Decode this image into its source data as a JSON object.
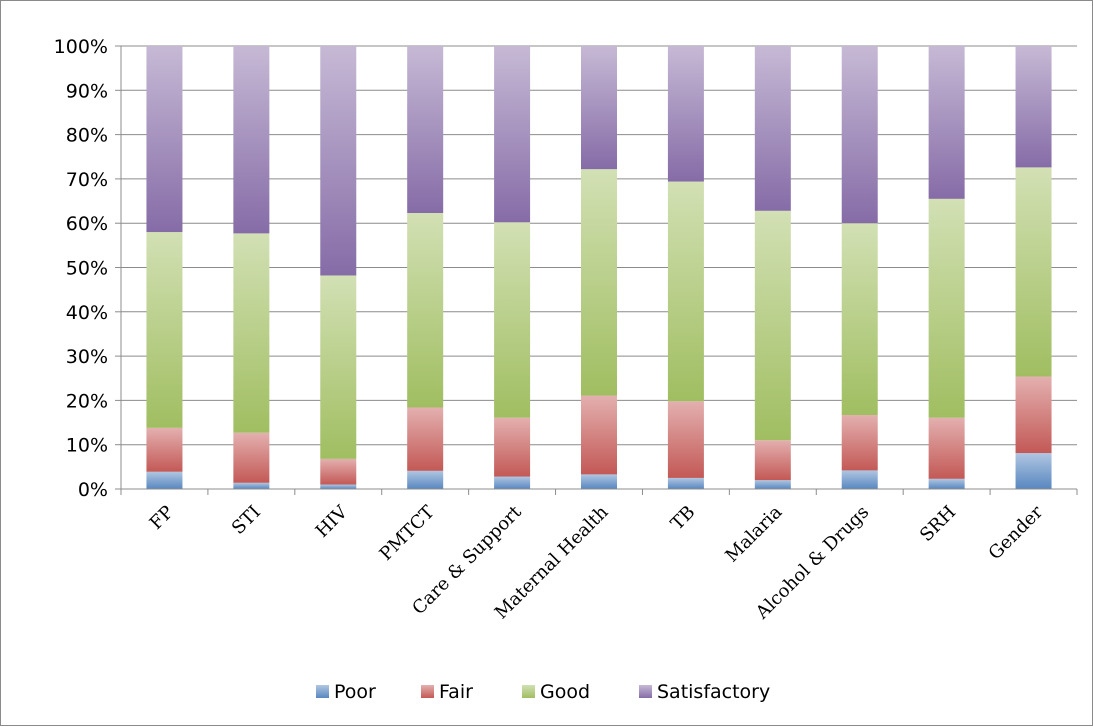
{
  "chart_data": {
    "type": "bar",
    "stacked": true,
    "percent": true,
    "categories": [
      "FP",
      "STI",
      "HIV",
      "PMTCT",
      "Care & Support",
      "Maternal Health",
      "TB",
      "Malaria",
      "Alcohol & Drugs",
      "SRH",
      "Gender"
    ],
    "series": [
      {
        "name": "Poor",
        "color": "#4f81bd",
        "values": [
          3.9,
          1.4,
          1.0,
          4.1,
          2.8,
          3.3,
          2.5,
          2.0,
          4.2,
          2.3,
          8.1
        ]
      },
      {
        "name": "Fair",
        "color": "#c0504d",
        "values": [
          9.9,
          11.3,
          5.8,
          14.3,
          13.3,
          17.8,
          17.3,
          9.0,
          12.5,
          13.8,
          17.3
        ]
      },
      {
        "name": "Good",
        "color": "#9bbb59",
        "values": [
          44.2,
          45.0,
          41.4,
          43.9,
          44.1,
          51.1,
          49.6,
          51.8,
          43.3,
          49.4,
          47.2
        ]
      },
      {
        "name": "Satisfactory",
        "color": "#8064a2",
        "values": [
          42.0,
          42.3,
          51.8,
          37.7,
          39.8,
          27.8,
          30.6,
          37.2,
          40.0,
          34.5,
          27.4
        ]
      }
    ],
    "ylim": [
      0,
      100
    ],
    "yticks": [
      "0%",
      "10%",
      "20%",
      "30%",
      "40%",
      "50%",
      "60%",
      "70%",
      "80%",
      "90%",
      "100%"
    ],
    "grid": true,
    "legend_position": "bottom",
    "title": "",
    "xlabel": "",
    "ylabel": ""
  }
}
